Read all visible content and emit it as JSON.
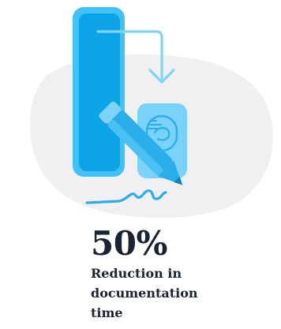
{
  "colors": {
    "blob": "#f0f0f2",
    "tall_bar": "#0ca3e8",
    "tall_bar_outline": "#3fc3f6",
    "small_box": "#79d2f8",
    "pencil": "#2aaee9",
    "pencil_light": "#7fd3f7",
    "arrow": "#7fd3f7",
    "text": "#1a2330"
  },
  "icons": {
    "illustration": "document-reduction-illustration",
    "arrow": "down-arrow-icon",
    "signature": "signature-squiggle-icon",
    "pencil": "pencil-icon",
    "document": "document-icon"
  },
  "stat": {
    "value": "50%",
    "label": "Reduction in documentation time"
  }
}
